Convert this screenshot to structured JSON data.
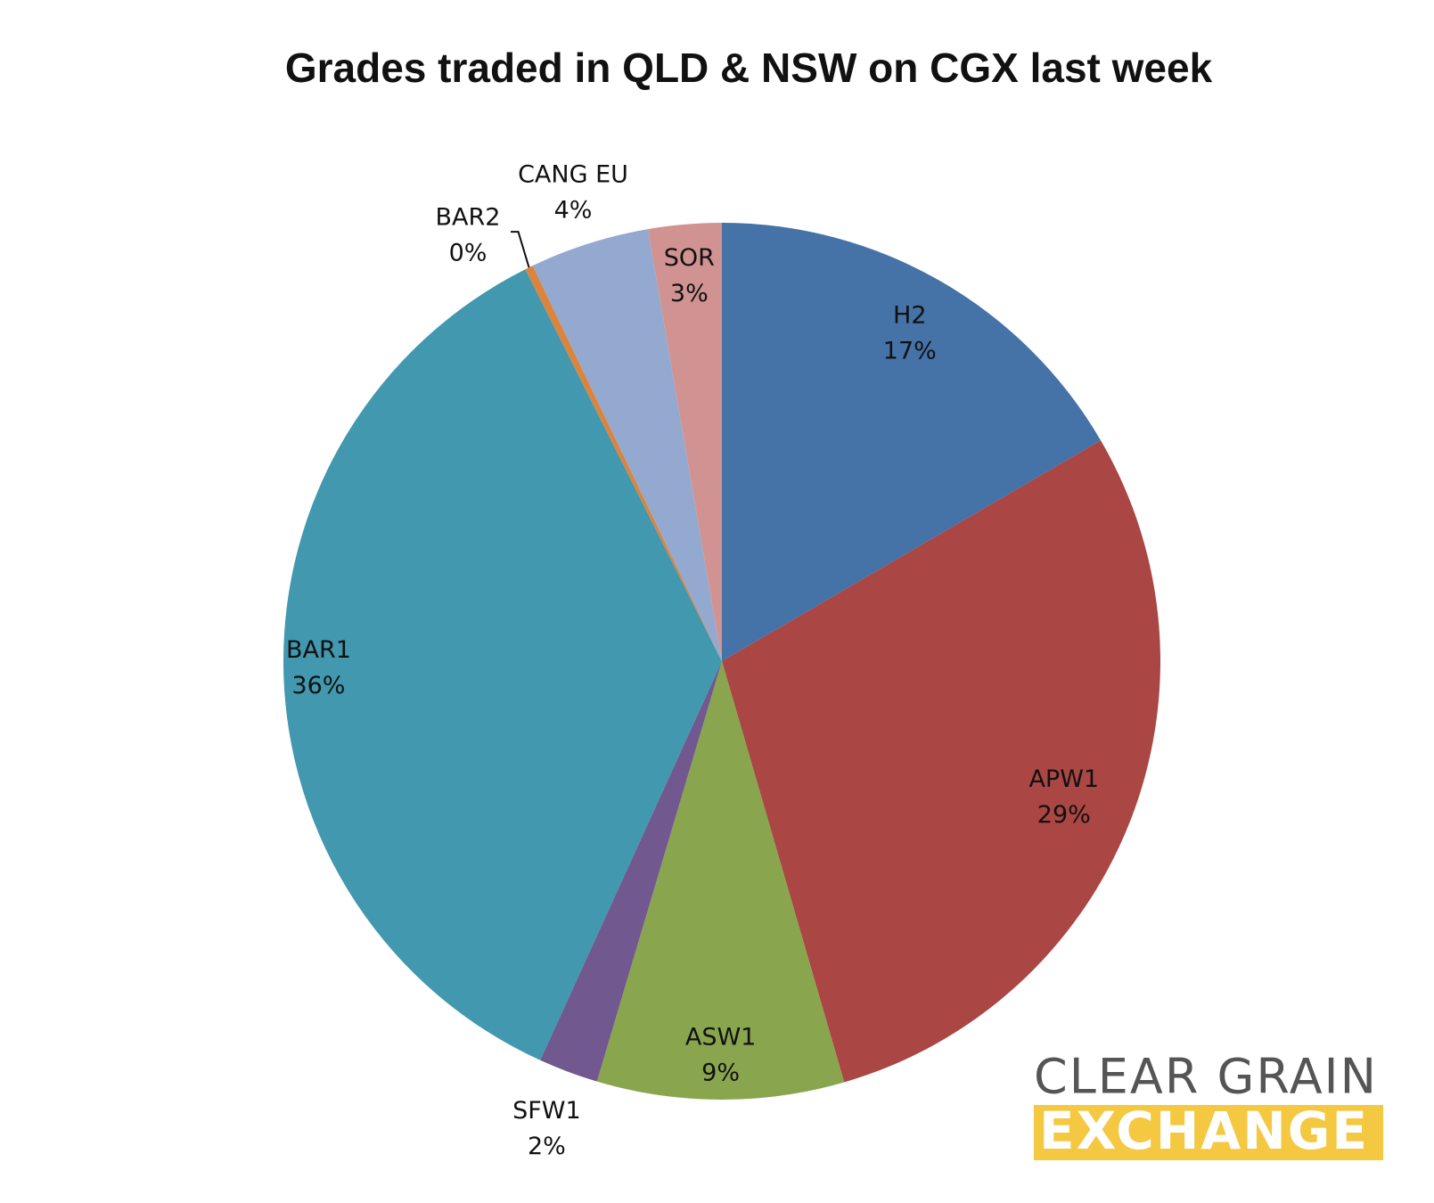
{
  "chart_data": {
    "type": "pie",
    "title": "Grades traded in QLD & NSW on CGX last week",
    "categories": [
      "H2",
      "APW1",
      "ASW1",
      "SFW1",
      "BAR1",
      "BAR2",
      "CANG EU",
      "SOR"
    ],
    "values": [
      16.6,
      28.9,
      9.1,
      2.2,
      35.8,
      0.3,
      4.4,
      2.7
    ],
    "value_labels": [
      "17%",
      "29%",
      "9%",
      "2%",
      "36%",
      "0%",
      "4%",
      "3%"
    ],
    "colors": [
      "#4572a7",
      "#aa4643",
      "#89a54e",
      "#71588f",
      "#4198af",
      "#db843d",
      "#93a9cf",
      "#d19392"
    ],
    "logo": {
      "line1": "CLEAR GRAIN",
      "line2": "EXCHANGE"
    }
  }
}
